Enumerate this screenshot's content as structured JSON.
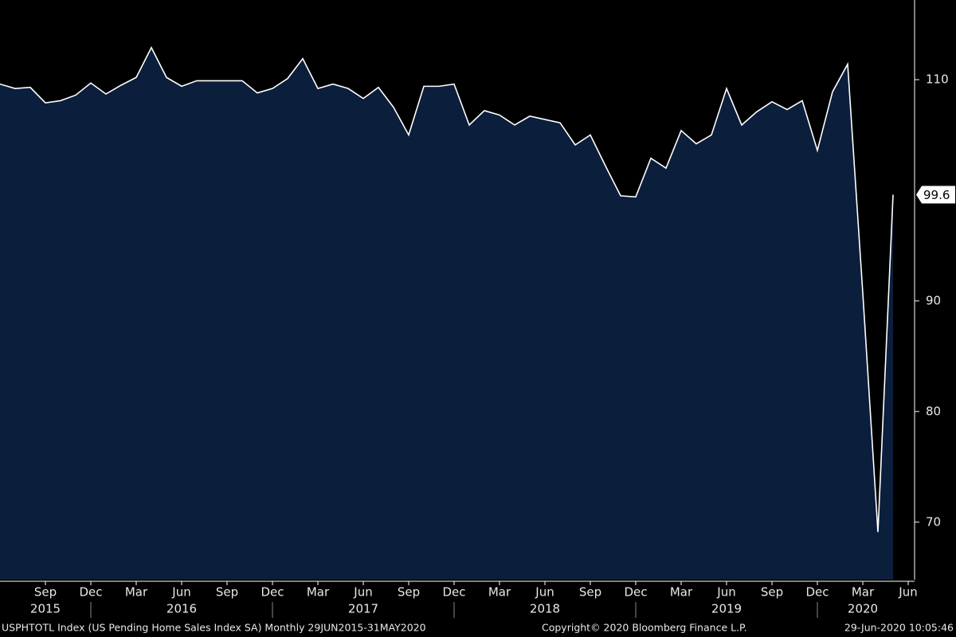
{
  "chart_data": {
    "type": "area",
    "categories": [
      "2015-06",
      "2015-07",
      "2015-08",
      "2015-09",
      "2015-10",
      "2015-11",
      "2015-12",
      "2016-01",
      "2016-02",
      "2016-03",
      "2016-04",
      "2016-05",
      "2016-06",
      "2016-07",
      "2016-08",
      "2016-09",
      "2016-10",
      "2016-11",
      "2016-12",
      "2017-01",
      "2017-02",
      "2017-03",
      "2017-04",
      "2017-05",
      "2017-06",
      "2017-07",
      "2017-08",
      "2017-09",
      "2017-10",
      "2017-11",
      "2017-12",
      "2018-01",
      "2018-02",
      "2018-03",
      "2018-04",
      "2018-05",
      "2018-06",
      "2018-07",
      "2018-08",
      "2018-09",
      "2018-10",
      "2018-11",
      "2018-12",
      "2019-01",
      "2019-02",
      "2019-03",
      "2019-04",
      "2019-05",
      "2019-06",
      "2019-07",
      "2019-08",
      "2019-09",
      "2019-10",
      "2019-11",
      "2019-12",
      "2020-01",
      "2020-02",
      "2020-03",
      "2020-04",
      "2020-05"
    ],
    "values": [
      109.6,
      109.2,
      109.3,
      107.9,
      108.1,
      108.6,
      109.7,
      108.7,
      109.5,
      110.2,
      112.9,
      110.2,
      109.4,
      109.9,
      109.9,
      109.9,
      109.9,
      108.8,
      109.2,
      110.1,
      111.9,
      109.2,
      109.6,
      109.2,
      108.3,
      109.3,
      107.5,
      105.0,
      109.4,
      109.4,
      109.6,
      105.9,
      107.2,
      106.8,
      105.9,
      106.7,
      106.4,
      106.1,
      104.1,
      105.0,
      102.2,
      99.5,
      99.4,
      102.9,
      102.0,
      105.4,
      104.2,
      105.0,
      109.2,
      105.9,
      107.1,
      108.0,
      107.3,
      108.1,
      103.6,
      108.9,
      111.4,
      90.7,
      69.1,
      99.6
    ],
    "color": "#ffffff",
    "fill_color": "#0b1e3c",
    "ylim": [
      64.8,
      117.2
    ],
    "yticks": [
      70,
      80,
      90,
      110
    ],
    "xticks": [
      {
        "value": "2015-09",
        "label": "Sep"
      },
      {
        "value": "2015-12",
        "label": "Dec"
      },
      {
        "value": "2016-03",
        "label": "Mar"
      },
      {
        "value": "2016-06",
        "label": "Jun"
      },
      {
        "value": "2016-09",
        "label": "Sep"
      },
      {
        "value": "2016-12",
        "label": "Dec"
      },
      {
        "value": "2017-03",
        "label": "Mar"
      },
      {
        "value": "2017-06",
        "label": "Jun"
      },
      {
        "value": "2017-09",
        "label": "Sep"
      },
      {
        "value": "2017-12",
        "label": "Dec"
      },
      {
        "value": "2018-03",
        "label": "Mar"
      },
      {
        "value": "2018-06",
        "label": "Jun"
      },
      {
        "value": "2018-09",
        "label": "Sep"
      },
      {
        "value": "2018-12",
        "label": "Dec"
      },
      {
        "value": "2019-03",
        "label": "Mar"
      },
      {
        "value": "2019-06",
        "label": "Jun"
      },
      {
        "value": "2019-09",
        "label": "Sep"
      },
      {
        "value": "2019-12",
        "label": "Dec"
      },
      {
        "value": "2020-03",
        "label": "Mar"
      },
      {
        "value": "2020-06",
        "label": "Jun"
      }
    ],
    "year_labels": [
      {
        "value": "2015-09",
        "label": "2015"
      },
      {
        "value": "2016-06",
        "label": "2016"
      },
      {
        "value": "2017-06",
        "label": "2017"
      },
      {
        "value": "2018-06",
        "label": "2018"
      },
      {
        "value": "2019-06",
        "label": "2019"
      },
      {
        "value": "2020-03",
        "label": "2020"
      }
    ],
    "source": "USPHTOTL Index (US Pending Home Sales Index SA)  Monthly 29JUN2015-31MAY2020",
    "copyright": "Copyright© 2020 Bloomberg Finance L.P.",
    "timestamp": "29-Jun-2020 10:05:46"
  }
}
